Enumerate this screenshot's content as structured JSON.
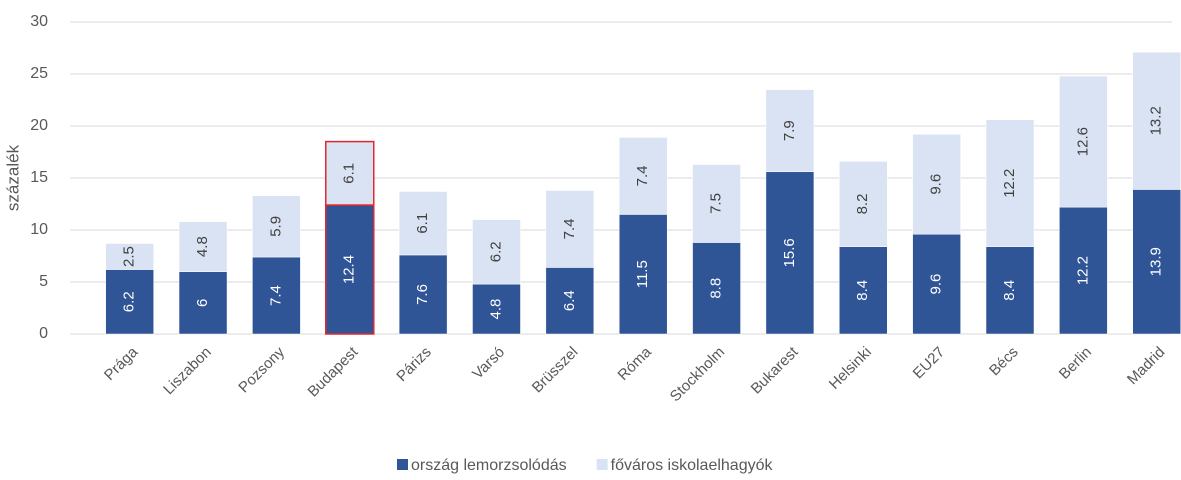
{
  "chart_data": {
    "type": "stacked_bar",
    "y_label": "százalék",
    "categories": [
      "Prága",
      "Liszabon",
      "Pozsony",
      "Budapest",
      "Párizs",
      "Varsó",
      "Brüsszel",
      "Róma",
      "Stockholm",
      "Bukarest",
      "Helsinki",
      "EU27",
      "Bécs",
      "Berlin",
      "Madrid"
    ],
    "series": [
      {
        "name": "ország lemorzsolódás",
        "color": "#2f5597",
        "values": [
          6.2,
          6,
          7.4,
          12.4,
          7.6,
          4.8,
          6.4,
          11.5,
          8.8,
          15.6,
          8.4,
          9.6,
          8.4,
          12.2,
          13.9
        ]
      },
      {
        "name": "főváros iskolaelhagyók",
        "color": "#dae3f3",
        "values": [
          2.5,
          4.8,
          5.9,
          6.1,
          6.1,
          6.2,
          7.4,
          7.4,
          7.5,
          7.9,
          8.2,
          9.6,
          12.2,
          12.6,
          13.2
        ]
      }
    ],
    "highlight": "Budapest",
    "highlight_color": "#e0282e",
    "ylim": [
      0,
      30
    ],
    "yticks": [
      0,
      5,
      10,
      15,
      20,
      25,
      30
    ],
    "grid": true,
    "legend": "bottom"
  }
}
